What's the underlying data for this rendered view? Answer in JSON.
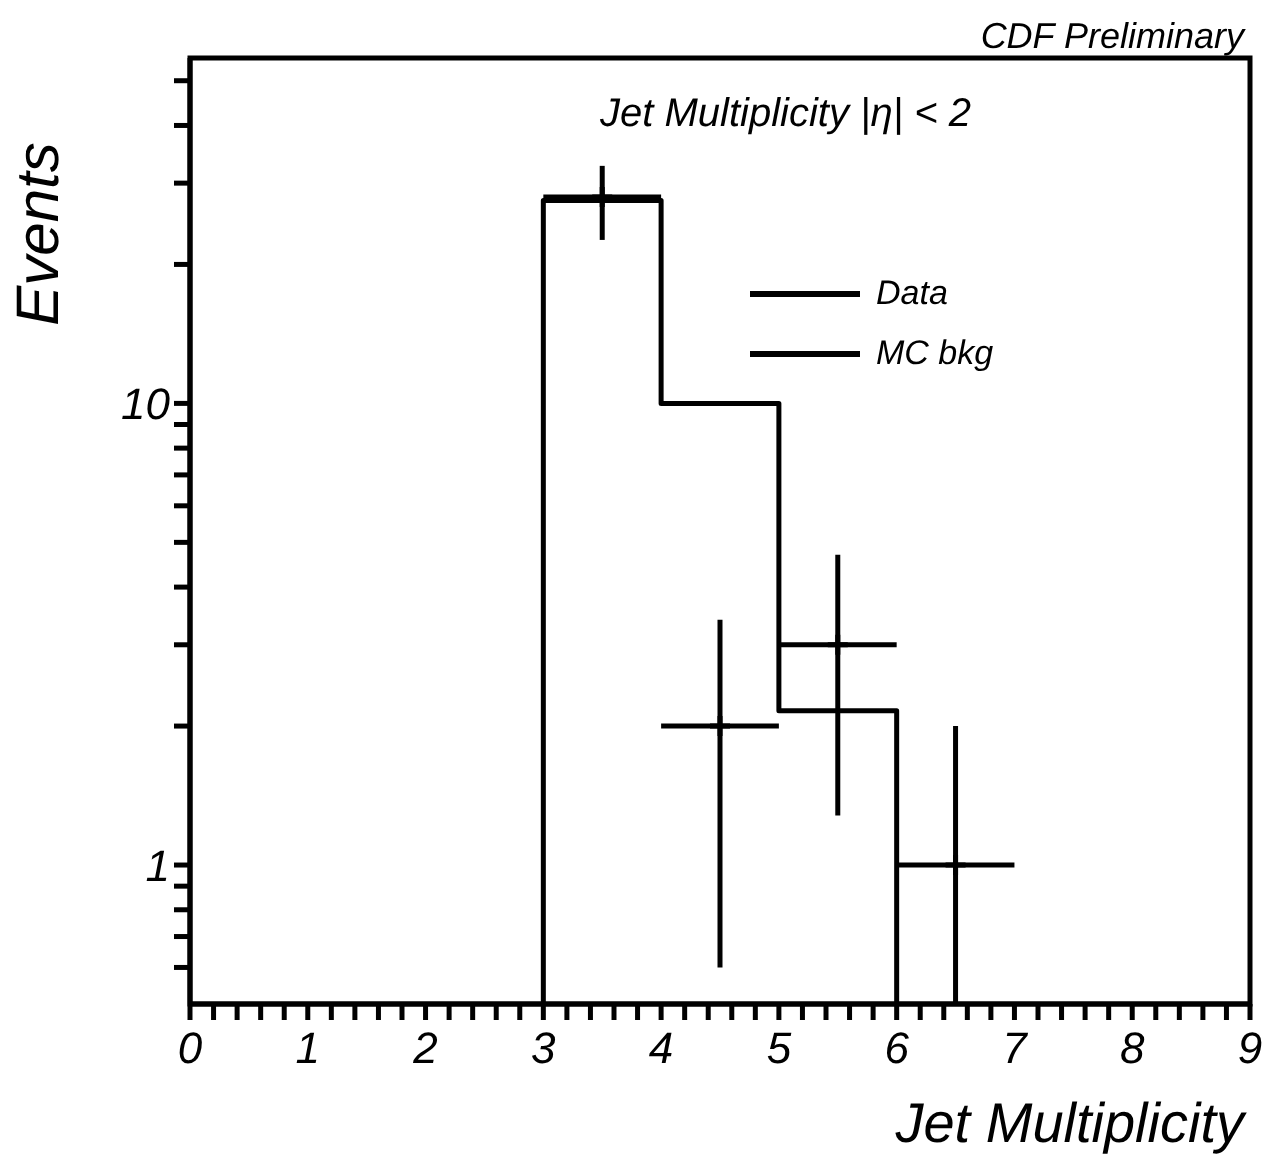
{
  "chart_data": {
    "type": "histogram",
    "title": "Jet Multiplicity |η| < 2",
    "xlabel": "Jet Multiplicity",
    "ylabel": "Events",
    "annotations": [
      "CDF Preliminary"
    ],
    "log": "y",
    "xlim": [
      0,
      9
    ],
    "ylim": [
      0.5,
      56
    ],
    "xticks": [
      0,
      {
        "value": 0.2,
        "label": null
      },
      {
        "value": 0.4,
        "label": null
      },
      {
        "value": 0.6,
        "label": null
      },
      {
        "value": 0.8,
        "label": null
      },
      1,
      {
        "value": 1.2,
        "label": null
      },
      {
        "value": 1.4,
        "label": null
      },
      {
        "value": 1.6,
        "label": null
      },
      {
        "value": 1.8,
        "label": null
      },
      2,
      {
        "value": 2.2,
        "label": null
      },
      {
        "value": 2.4,
        "label": null
      },
      {
        "value": 2.6,
        "label": null
      },
      {
        "value": 2.8,
        "label": null
      },
      3,
      {
        "value": 3.2,
        "label": null
      },
      {
        "value": 3.4,
        "label": null
      },
      {
        "value": 3.6,
        "label": null
      },
      {
        "value": 3.8,
        "label": null
      },
      4,
      {
        "value": 4.2,
        "label": null
      },
      {
        "value": 4.4,
        "label": null
      },
      {
        "value": 4.6,
        "label": null
      },
      {
        "value": 4.8,
        "label": null
      },
      5,
      {
        "value": 5.2,
        "label": null
      },
      {
        "value": 5.4,
        "label": null
      },
      {
        "value": 5.6,
        "label": null
      },
      {
        "value": 5.8,
        "label": null
      },
      6,
      {
        "value": 6.2,
        "label": null
      },
      {
        "value": 6.4,
        "label": null
      },
      {
        "value": 6.6,
        "label": null
      },
      {
        "value": 6.8,
        "label": null
      },
      7,
      {
        "value": 7.2,
        "label": null
      },
      {
        "value": 7.4,
        "label": null
      },
      {
        "value": 7.6,
        "label": null
      },
      {
        "value": 7.8,
        "label": null
      },
      8,
      {
        "value": 8.2,
        "label": null
      },
      {
        "value": 8.4,
        "label": null
      },
      {
        "value": 8.6,
        "label": null
      },
      {
        "value": 8.8,
        "label": null
      },
      9
    ],
    "yticks": [
      {
        "value": 0.6,
        "label": null
      },
      {
        "value": 0.7,
        "label": null
      },
      {
        "value": 0.8,
        "label": null
      },
      {
        "value": 0.9,
        "label": null
      },
      1,
      {
        "value": 2,
        "label": null
      },
      {
        "value": 3,
        "label": null
      },
      {
        "value": 4,
        "label": null
      },
      {
        "value": 5,
        "label": null
      },
      {
        "value": 6,
        "label": null
      },
      {
        "value": 7,
        "label": null
      },
      {
        "value": 8,
        "label": null
      },
      {
        "value": 9,
        "label": null
      },
      10,
      {
        "value": 20,
        "label": null
      },
      {
        "value": 30,
        "label": null
      },
      {
        "value": 40,
        "label": null
      },
      {
        "value": 50,
        "label": null
      }
    ],
    "legend": "top right",
    "marker": "cross",
    "series": [
      {
        "name": "Data",
        "type": "scatter",
        "color": "#000000",
        "x": [
          3.5,
          4.5,
          5.5,
          6.5
        ],
        "values": [
          28,
          2,
          3,
          1
        ],
        "errors": [
          [
            22.6,
            32.7
          ],
          [
            0.6,
            3.4
          ],
          [
            1.28,
            4.7
          ],
          [
            0.5,
            2.0
          ]
        ],
        "xerrors": [
          0.5,
          0.5,
          0.5,
          0.5
        ]
      },
      {
        "name": "MC bkg",
        "type": "histogram",
        "color": "#000000",
        "bins": [
          3,
          4,
          5,
          6
        ],
        "values": [
          27.5,
          10,
          2.16
        ]
      }
    ]
  }
}
